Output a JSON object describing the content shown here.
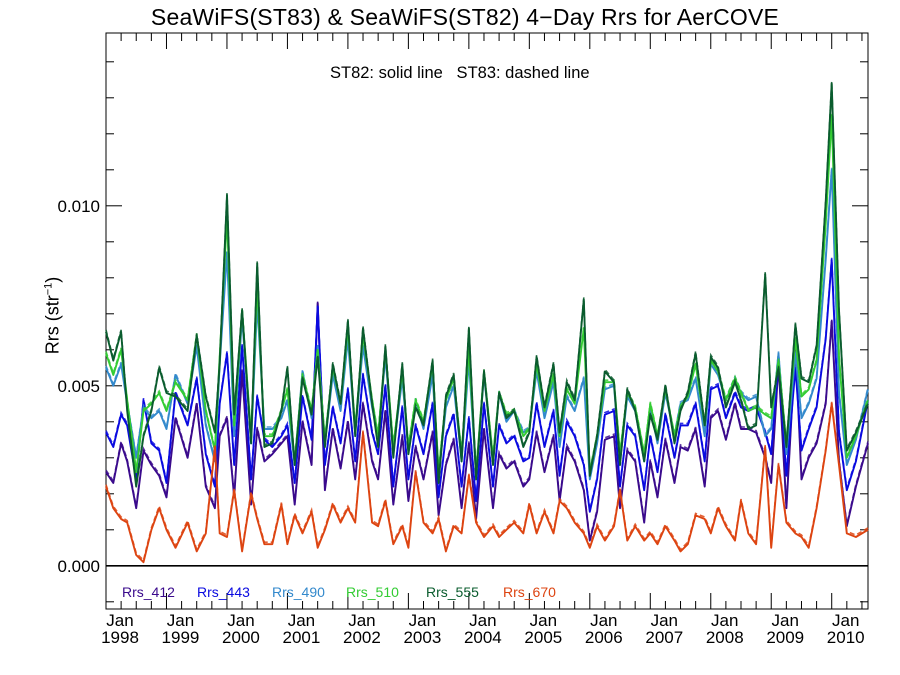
{
  "chart": {
    "title": "SeaWiFS(ST83) & SeaWiFS(ST82) 4−Day Rrs for AerCOVE",
    "subtitle": "ST82: solid line   ST83: dashed line",
    "ylabel_main": "Rrs (str",
    "ylabel_sup": "−1",
    "ylabel_close": ")"
  },
  "chart_data": {
    "type": "line",
    "title": "SeaWiFS(ST83) & SeaWiFS(ST82) 4−Day Rrs for AerCOVE",
    "ylabel": "Rrs (str⁻¹)",
    "annotation": "ST82: solid line   ST83: dashed line",
    "xlim": [
      1998.0,
      2010.6
    ],
    "ylim": [
      -0.0012,
      0.0148
    ],
    "grid": false,
    "legend_position": "bottom-left",
    "y_ticks": [
      {
        "value": 0.0,
        "label": "0.000"
      },
      {
        "value": 0.005,
        "label": "0.005"
      },
      {
        "value": 0.01,
        "label": "0.010"
      }
    ],
    "x_ticks": [
      {
        "value": 1998,
        "month": "Jan",
        "year": "1998"
      },
      {
        "value": 1999,
        "month": "Jan",
        "year": "1999"
      },
      {
        "value": 2000,
        "month": "Jan",
        "year": "2000"
      },
      {
        "value": 2001,
        "month": "Jan",
        "year": "2001"
      },
      {
        "value": 2002,
        "month": "Jan",
        "year": "2002"
      },
      {
        "value": 2003,
        "month": "Jan",
        "year": "2003"
      },
      {
        "value": 2004,
        "month": "Jan",
        "year": "2004"
      },
      {
        "value": 2005,
        "month": "Jan",
        "year": "2005"
      },
      {
        "value": 2006,
        "month": "Jan",
        "year": "2006"
      },
      {
        "value": 2007,
        "month": "Jan",
        "year": "2007"
      },
      {
        "value": 2008,
        "month": "Jan",
        "year": "2008"
      },
      {
        "value": 2009,
        "month": "Jan",
        "year": "2009"
      },
      {
        "value": 2010,
        "month": "Jan",
        "year": "2010"
      }
    ],
    "x": [
      1998.0,
      1998.12,
      1998.25,
      1998.35,
      1998.5,
      1998.62,
      1998.75,
      1998.88,
      1999.0,
      1999.15,
      1999.35,
      1999.5,
      1999.65,
      1999.8,
      1999.88,
      2000.0,
      2000.12,
      2000.25,
      2000.4,
      2000.5,
      2000.62,
      2000.75,
      2000.9,
      2001.0,
      2001.12,
      2001.25,
      2001.4,
      2001.5,
      2001.62,
      2001.75,
      2001.88,
      2002.0,
      2002.12,
      2002.25,
      2002.4,
      2002.5,
      2002.62,
      2002.75,
      2002.9,
      2003.0,
      2003.12,
      2003.25,
      2003.4,
      2003.5,
      2003.62,
      2003.75,
      2003.88,
      2004.0,
      2004.12,
      2004.25,
      2004.4,
      2004.5,
      2004.62,
      2004.75,
      2004.9,
      2005.0,
      2005.12,
      2005.25,
      2005.4,
      2005.5,
      2005.62,
      2005.75,
      2005.9,
      2006.0,
      2006.12,
      2006.25,
      2006.4,
      2006.5,
      2006.62,
      2006.75,
      2006.9,
      2007.0,
      2007.12,
      2007.25,
      2007.4,
      2007.5,
      2007.62,
      2007.75,
      2007.9,
      2008.0,
      2008.12,
      2008.25,
      2008.4,
      2008.5,
      2008.62,
      2008.75,
      2008.9,
      2009.0,
      2009.12,
      2009.25,
      2009.4,
      2009.5,
      2009.62,
      2009.75,
      2009.9,
      2010.0,
      2010.12,
      2010.25,
      2010.4,
      2010.6
    ],
    "series": [
      {
        "name": "Rrs_412",
        "color": "#3a0a8c",
        "values": [
          0.0026,
          0.0023,
          0.0034,
          0.0029,
          0.0016,
          0.0032,
          0.0028,
          0.0025,
          0.0019,
          0.0041,
          0.003,
          0.0045,
          0.0022,
          0.0016,
          0.0036,
          0.0041,
          0.0019,
          0.0054,
          0.0017,
          0.0038,
          0.0029,
          0.0031,
          0.0034,
          0.0036,
          0.0017,
          0.004,
          0.0028,
          0.0073,
          0.0021,
          0.0038,
          0.0027,
          0.004,
          0.0024,
          0.0045,
          0.0029,
          0.0024,
          0.0043,
          0.0017,
          0.0036,
          0.0018,
          0.0033,
          0.0024,
          0.0037,
          0.0014,
          0.0028,
          0.0035,
          0.0016,
          0.0034,
          0.0013,
          0.0038,
          0.0016,
          0.0031,
          0.0027,
          0.0029,
          0.0022,
          0.0024,
          0.0037,
          0.0026,
          0.0036,
          0.0018,
          0.0033,
          0.0029,
          0.0021,
          0.0007,
          0.0015,
          0.0035,
          0.0036,
          0.0016,
          0.0032,
          0.0029,
          0.0012,
          0.0029,
          0.0019,
          0.0035,
          0.0023,
          0.0033,
          0.0032,
          0.0038,
          0.0022,
          0.0041,
          0.0043,
          0.0035,
          0.0045,
          0.0038,
          0.0038,
          0.0037,
          0.003,
          0.0023,
          0.0056,
          0.0016,
          0.0061,
          0.0024,
          0.003,
          0.0034,
          0.0045,
          0.0068,
          0.0029,
          0.0011,
          0.0022,
          0.0034
        ]
      },
      {
        "name": "Rrs_443",
        "color": "#0a0ae0",
        "values": [
          0.0037,
          0.0033,
          0.0042,
          0.0039,
          0.0024,
          0.0046,
          0.0034,
          0.0032,
          0.0023,
          0.0048,
          0.0039,
          0.0052,
          0.0031,
          0.0022,
          0.0045,
          0.0059,
          0.0028,
          0.0061,
          0.0024,
          0.0047,
          0.0035,
          0.0033,
          0.0036,
          0.0039,
          0.0023,
          0.0047,
          0.0035,
          0.0072,
          0.0028,
          0.0044,
          0.0034,
          0.0049,
          0.0029,
          0.0053,
          0.0037,
          0.0031,
          0.005,
          0.0022,
          0.0044,
          0.0024,
          0.0039,
          0.0031,
          0.0045,
          0.0019,
          0.0036,
          0.0042,
          0.0022,
          0.0041,
          0.0018,
          0.0045,
          0.0022,
          0.0039,
          0.0034,
          0.0036,
          0.0029,
          0.003,
          0.0045,
          0.0033,
          0.0043,
          0.0025,
          0.004,
          0.0036,
          0.0028,
          0.0015,
          0.0024,
          0.0042,
          0.0043,
          0.0022,
          0.0039,
          0.0036,
          0.0021,
          0.0036,
          0.0026,
          0.0042,
          0.003,
          0.0039,
          0.0039,
          0.0045,
          0.0029,
          0.0049,
          0.005,
          0.0041,
          0.0048,
          0.0044,
          0.0043,
          0.0044,
          0.0037,
          0.0031,
          0.0057,
          0.0025,
          0.0055,
          0.0032,
          0.0038,
          0.0044,
          0.0063,
          0.0085,
          0.0037,
          0.0021,
          0.0029,
          0.0046
        ]
      },
      {
        "name": "Rrs_490",
        "color": "#3389cc",
        "values": [
          0.0055,
          0.005,
          0.0056,
          0.0045,
          0.003,
          0.0044,
          0.0041,
          0.0043,
          0.0038,
          0.0053,
          0.0045,
          0.0061,
          0.0039,
          0.0029,
          0.0056,
          0.0087,
          0.0036,
          0.0069,
          0.0034,
          0.0073,
          0.0038,
          0.0038,
          0.0041,
          0.0046,
          0.0028,
          0.0054,
          0.0041,
          0.0061,
          0.0034,
          0.0053,
          0.0043,
          0.0063,
          0.0037,
          0.0061,
          0.0044,
          0.0036,
          0.0058,
          0.0032,
          0.0052,
          0.0032,
          0.0046,
          0.0038,
          0.0053,
          0.0025,
          0.0044,
          0.005,
          0.0029,
          0.0057,
          0.0025,
          0.0053,
          0.0029,
          0.0048,
          0.004,
          0.0043,
          0.0037,
          0.0038,
          0.0054,
          0.0041,
          0.0051,
          0.0033,
          0.0047,
          0.0043,
          0.0052,
          0.0024,
          0.0034,
          0.0049,
          0.005,
          0.0029,
          0.0047,
          0.0043,
          0.0029,
          0.0044,
          0.0034,
          0.0048,
          0.0036,
          0.0045,
          0.0046,
          0.0052,
          0.0036,
          0.0056,
          0.0053,
          0.0046,
          0.0052,
          0.0048,
          0.0046,
          0.0047,
          0.0036,
          0.0038,
          0.0059,
          0.0031,
          0.0059,
          0.0041,
          0.0045,
          0.0052,
          0.0085,
          0.011,
          0.0048,
          0.0028,
          0.0035,
          0.0049
        ]
      },
      {
        "name": "Rrs_510",
        "color": "#33cc33",
        "values": [
          0.0059,
          0.0053,
          0.006,
          0.0046,
          0.0026,
          0.0043,
          0.0045,
          0.0048,
          0.0043,
          0.0051,
          0.0046,
          0.0064,
          0.0043,
          0.0032,
          0.0058,
          0.0097,
          0.0039,
          0.0071,
          0.0036,
          0.0078,
          0.0036,
          0.0036,
          0.0043,
          0.0049,
          0.0029,
          0.0053,
          0.0043,
          0.006,
          0.0035,
          0.0055,
          0.0045,
          0.0066,
          0.0038,
          0.0064,
          0.0046,
          0.0036,
          0.006,
          0.0033,
          0.0054,
          0.0033,
          0.0046,
          0.004,
          0.0056,
          0.0026,
          0.0046,
          0.0052,
          0.0031,
          0.006,
          0.0026,
          0.0054,
          0.003,
          0.0048,
          0.0042,
          0.0043,
          0.0036,
          0.0038,
          0.0056,
          0.0043,
          0.0053,
          0.0036,
          0.0049,
          0.0045,
          0.0066,
          0.0026,
          0.0036,
          0.0051,
          0.0051,
          0.0031,
          0.0048,
          0.0044,
          0.0031,
          0.0045,
          0.0036,
          0.0049,
          0.0036,
          0.0044,
          0.0047,
          0.0056,
          0.0039,
          0.0057,
          0.0054,
          0.0046,
          0.0052,
          0.0048,
          0.0043,
          0.0044,
          0.0042,
          0.0041,
          0.0057,
          0.0034,
          0.0063,
          0.0047,
          0.0049,
          0.0057,
          0.0095,
          0.0125,
          0.0058,
          0.003,
          0.0036,
          0.0046
        ]
      },
      {
        "name": "Rrs_555",
        "color": "#0a5c2e",
        "values": [
          0.0065,
          0.0057,
          0.0065,
          0.0043,
          0.0022,
          0.0036,
          0.0043,
          0.0055,
          0.0048,
          0.0047,
          0.0043,
          0.0064,
          0.0047,
          0.0037,
          0.0056,
          0.0103,
          0.0042,
          0.0071,
          0.0034,
          0.0084,
          0.0033,
          0.0034,
          0.0043,
          0.0055,
          0.0028,
          0.0052,
          0.0042,
          0.0058,
          0.0033,
          0.0056,
          0.0045,
          0.0068,
          0.0036,
          0.0066,
          0.0045,
          0.0033,
          0.0061,
          0.003,
          0.0056,
          0.0031,
          0.0044,
          0.0039,
          0.0057,
          0.0023,
          0.0047,
          0.0053,
          0.0029,
          0.0066,
          0.0024,
          0.0054,
          0.0028,
          0.0048,
          0.0041,
          0.0043,
          0.0033,
          0.0037,
          0.0058,
          0.0044,
          0.0056,
          0.0037,
          0.0051,
          0.0046,
          0.0074,
          0.0025,
          0.0036,
          0.0054,
          0.0051,
          0.0028,
          0.0049,
          0.0043,
          0.0029,
          0.0042,
          0.0035,
          0.005,
          0.0034,
          0.0043,
          0.0048,
          0.0059,
          0.0039,
          0.0058,
          0.0055,
          0.0044,
          0.0051,
          0.0046,
          0.0038,
          0.0039,
          0.0081,
          0.0044,
          0.0055,
          0.0033,
          0.0067,
          0.0052,
          0.0051,
          0.0061,
          0.0101,
          0.0134,
          0.0071,
          0.0032,
          0.0037,
          0.0045
        ]
      },
      {
        "name": "Rrs_670",
        "color": "#dd4411",
        "values": [
          0.0022,
          0.0016,
          0.0013,
          0.0012,
          0.0003,
          0.0001,
          0.001,
          0.0016,
          0.001,
          0.0005,
          0.0012,
          0.0004,
          0.0009,
          0.0033,
          0.0009,
          0.0008,
          0.0021,
          0.0004,
          0.002,
          0.0013,
          0.0006,
          0.0006,
          0.0017,
          0.0006,
          0.0014,
          0.0009,
          0.0015,
          0.0005,
          0.001,
          0.0017,
          0.0012,
          0.0016,
          0.0012,
          0.0037,
          0.0012,
          0.0011,
          0.0018,
          0.0006,
          0.0011,
          0.0005,
          0.0026,
          0.0012,
          0.0009,
          0.0013,
          0.0004,
          0.0011,
          0.0009,
          0.0025,
          0.0012,
          0.0008,
          0.0011,
          0.0008,
          0.001,
          0.0012,
          0.0009,
          0.0017,
          0.0009,
          0.0015,
          0.0009,
          0.0018,
          0.0016,
          0.0012,
          0.0009,
          0.0005,
          0.0011,
          0.0007,
          0.0011,
          0.0021,
          0.0007,
          0.0011,
          0.0007,
          0.0009,
          0.0006,
          0.0011,
          0.0007,
          0.0004,
          0.0006,
          0.0014,
          0.0013,
          0.0009,
          0.0016,
          0.0011,
          0.0007,
          0.0018,
          0.0009,
          0.0006,
          0.0033,
          0.0005,
          0.0028,
          0.0012,
          0.0009,
          0.0008,
          0.0005,
          0.0016,
          0.0032,
          0.0045,
          0.0028,
          0.0009,
          0.0008,
          0.001
        ]
      }
    ]
  }
}
